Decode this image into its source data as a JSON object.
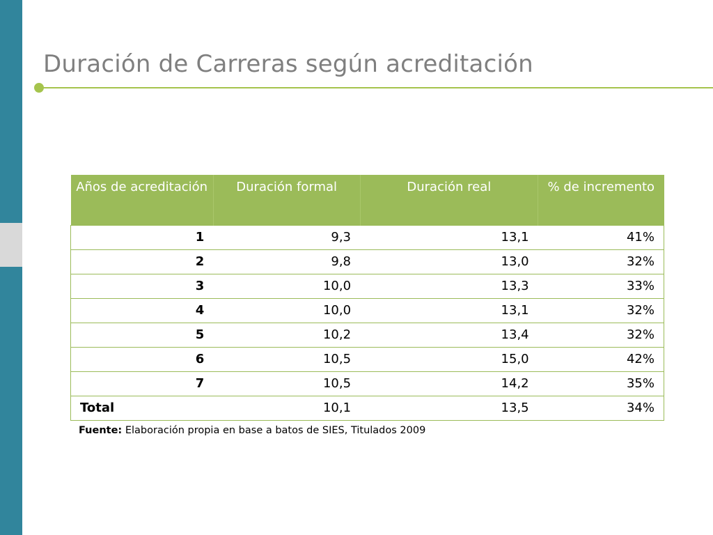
{
  "slide": {
    "title": "Duración de Carreras según acreditación"
  },
  "colors": {
    "side_bar": "#31859c",
    "side_bar_block": "#d9d9d9",
    "accent": "#a5c44d",
    "table_header": "#9bbb59",
    "title_text": "#7f7f7f"
  },
  "table": {
    "headers": [
      "Años de acreditación",
      "Duración formal",
      "Duración real",
      "% de incremento"
    ],
    "rows": [
      [
        "1",
        "9,3",
        "13,1",
        "41%"
      ],
      [
        "2",
        "9,8",
        "13,0",
        "32%"
      ],
      [
        "3",
        "10,0",
        "13,3",
        "33%"
      ],
      [
        "4",
        "10,0",
        "13,1",
        "32%"
      ],
      [
        "5",
        "10,2",
        "13,4",
        "32%"
      ],
      [
        "6",
        "10,5",
        "15,0",
        "42%"
      ],
      [
        "7",
        "10,5",
        "14,2",
        "35%"
      ],
      [
        "Total",
        "10,1",
        "13,5",
        "34%"
      ]
    ]
  },
  "footnote": {
    "label": "Fuente:",
    "text": " Elaboración propia en base a batos de SIES, Titulados  2009"
  }
}
